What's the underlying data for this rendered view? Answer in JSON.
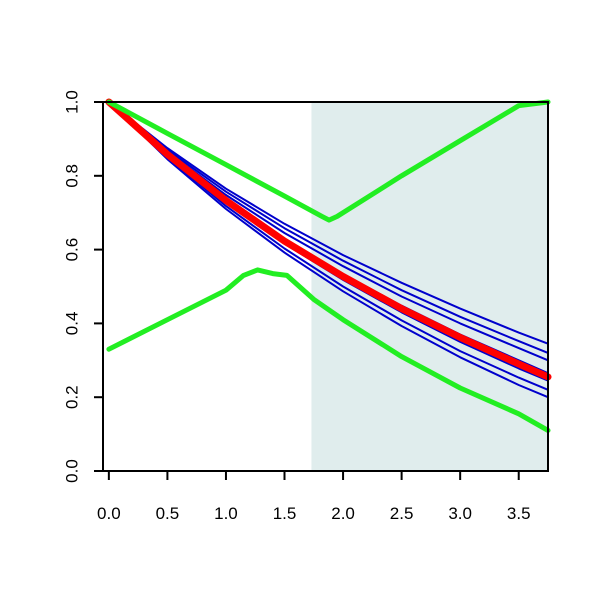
{
  "chart_data": {
    "type": "line",
    "title": "",
    "xlabel": "",
    "ylabel": "",
    "xlim": [
      -0.05,
      3.75
    ],
    "ylim": [
      0.0,
      1.0
    ],
    "x_ticks": [
      0.0,
      0.5,
      1.0,
      1.5,
      2.0,
      2.5,
      3.0,
      3.5
    ],
    "x_tick_labels": [
      "0.0",
      "0.5",
      "1.0",
      "1.5",
      "2.0",
      "2.5",
      "3.0",
      "3.5"
    ],
    "y_ticks": [
      0.0,
      0.2,
      0.4,
      0.6,
      0.8,
      1.0
    ],
    "y_tick_labels": [
      "0.0",
      "0.2",
      "0.4",
      "0.6",
      "0.8",
      "1.0"
    ],
    "grid": false,
    "shaded_region": {
      "x_from": 1.73,
      "x_to": 3.75,
      "color": "#e0eded"
    },
    "colors": {
      "red": "#ff0000",
      "blue": "#0000cc",
      "green": "#22ee22"
    },
    "series": [
      {
        "color": "blue",
        "x": [
          0,
          0.5,
          1.0,
          1.5,
          2.0,
          2.5,
          3.0,
          3.5,
          3.75
        ],
        "y": [
          1.0,
          0.875,
          0.765,
          0.67,
          0.585,
          0.51,
          0.44,
          0.375,
          0.345
        ]
      },
      {
        "color": "blue",
        "x": [
          0,
          0.5,
          1.0,
          1.5,
          2.0,
          2.5,
          3.0,
          3.5,
          3.75
        ],
        "y": [
          1.0,
          0.87,
          0.757,
          0.658,
          0.57,
          0.49,
          0.418,
          0.352,
          0.32
        ]
      },
      {
        "color": "blue",
        "x": [
          0,
          0.5,
          1.0,
          1.5,
          2.0,
          2.5,
          3.0,
          3.5,
          3.75
        ],
        "y": [
          1.0,
          0.865,
          0.748,
          0.645,
          0.555,
          0.473,
          0.4,
          0.333,
          0.3
        ]
      },
      {
        "color": "blue",
        "x": [
          0,
          0.5,
          1.0,
          1.5,
          2.0,
          2.5,
          3.0,
          3.5,
          3.75
        ],
        "y": [
          1.0,
          0.86,
          0.737,
          0.628,
          0.533,
          0.448,
          0.37,
          0.3,
          0.265
        ]
      },
      {
        "color": "blue",
        "x": [
          0,
          0.5,
          1.0,
          1.5,
          2.0,
          2.5,
          3.0,
          3.5,
          3.75
        ],
        "y": [
          1.0,
          0.855,
          0.728,
          0.616,
          0.518,
          0.43,
          0.35,
          0.278,
          0.245
        ]
      },
      {
        "color": "blue",
        "x": [
          0,
          0.5,
          1.0,
          1.5,
          2.0,
          2.5,
          3.0,
          3.5,
          3.75
        ],
        "y": [
          1.0,
          0.85,
          0.718,
          0.603,
          0.5,
          0.408,
          0.325,
          0.253,
          0.22
        ]
      },
      {
        "color": "blue",
        "x": [
          0,
          0.5,
          1.0,
          1.5,
          2.0,
          2.5,
          3.0,
          3.5,
          3.75
        ],
        "y": [
          1.0,
          0.845,
          0.71,
          0.592,
          0.487,
          0.393,
          0.308,
          0.233,
          0.2
        ]
      },
      {
        "color": "red",
        "x": [
          0,
          0.5,
          1.0,
          1.5,
          2.0,
          2.5,
          3.0,
          3.5,
          3.75
        ],
        "y": [
          1.0,
          0.858,
          0.733,
          0.623,
          0.527,
          0.44,
          0.362,
          0.29,
          0.255
        ]
      },
      {
        "color": "green",
        "x": [
          0,
          0.5,
          1.0,
          1.5,
          1.82,
          1.88,
          1.95,
          2.5,
          3.0,
          3.5,
          3.75
        ],
        "y": [
          1.0,
          0.915,
          0.83,
          0.745,
          0.69,
          0.68,
          0.69,
          0.8,
          0.895,
          0.99,
          1.0
        ]
      },
      {
        "color": "green",
        "x": [
          0,
          0.5,
          1.0,
          1.15,
          1.27,
          1.4,
          1.52,
          1.75,
          2.0,
          2.5,
          3.0,
          3.5,
          3.75
        ],
        "y": [
          0.33,
          0.41,
          0.49,
          0.53,
          0.545,
          0.535,
          0.53,
          0.465,
          0.41,
          0.31,
          0.225,
          0.155,
          0.11
        ]
      }
    ]
  }
}
